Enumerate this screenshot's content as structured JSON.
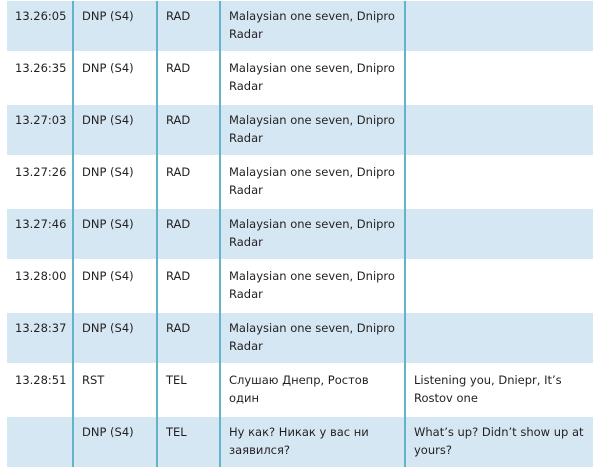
{
  "rows": [
    {
      "time": "13.26:05",
      "from": "DNP (S4)",
      "type": "RAD",
      "original": "Malaysian one seven, Dnipro Radar",
      "translation": ""
    },
    {
      "time": "13.26:35",
      "from": "DNP (S4)",
      "type": "RAD",
      "original": "Malaysian one seven, Dnipro Radar",
      "translation": ""
    },
    {
      "time": "13.27:03",
      "from": "DNP (S4)",
      "type": "RAD",
      "original": "Malaysian one seven, Dnipro Radar",
      "translation": ""
    },
    {
      "time": "13.27:26",
      "from": "DNP (S4)",
      "type": "RAD",
      "original": "Malaysian one seven, Dnipro Radar",
      "translation": ""
    },
    {
      "time": "13.27:46",
      "from": "DNP (S4)",
      "type": "RAD",
      "original": "Malaysian one seven, Dnipro Radar",
      "translation": ""
    },
    {
      "time": "13.28:00",
      "from": "DNP (S4)",
      "type": "RAD",
      "original": "Malaysian one seven, Dnipro Radar",
      "translation": ""
    },
    {
      "time": "13.28:37",
      "from": "DNP (S4)",
      "type": "RAD",
      "original": "Malaysian one seven, Dnipro Radar",
      "translation": ""
    },
    {
      "time": "13.28:51",
      "from": "RST",
      "type": "TEL",
      "original": "Слушаю Днепр, Ростов один",
      "translation": "Listening you, Dniepr, It’s Rostov one"
    },
    {
      "time": "",
      "from": "DNP (S4)",
      "type": "TEL",
      "original": "Ну как? Никак у вас ни заявился?",
      "translation": "What’s up? Didn’t show up at yours?"
    }
  ],
  "colors": {
    "shade": "#d5e7f2",
    "divider": "#63b4c9"
  }
}
